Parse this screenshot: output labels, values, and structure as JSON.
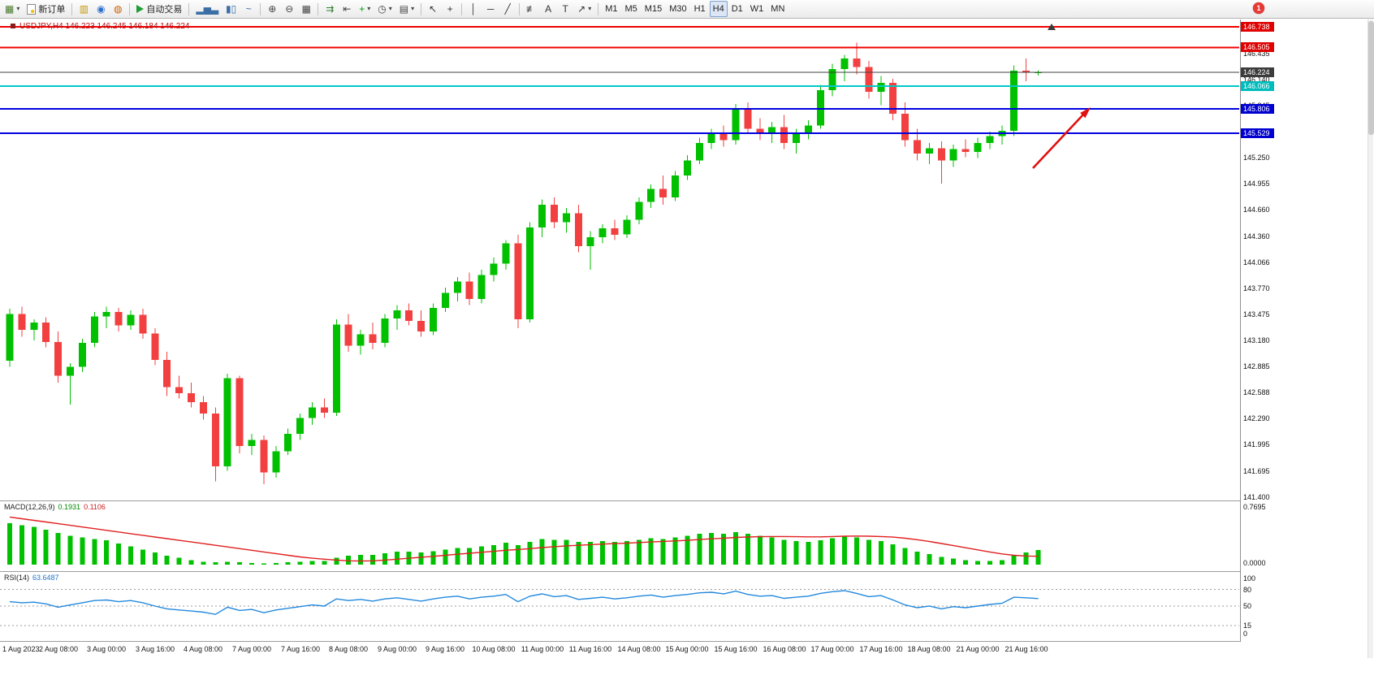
{
  "window": {
    "badge": "1"
  },
  "toolbar": {
    "items": [
      {
        "type": "button",
        "name": "new-chart",
        "glyph": "▦",
        "color": "#4a7c2f",
        "caret": true
      },
      {
        "type": "button",
        "name": "new-order",
        "icon": "paper",
        "label": "新订单"
      },
      {
        "type": "sep"
      },
      {
        "type": "button",
        "name": "market-watch",
        "glyph": "▥",
        "color": "#c89600"
      },
      {
        "type": "button",
        "name": "navigator",
        "glyph": "◉",
        "color": "#2a6fd0"
      },
      {
        "type": "button",
        "name": "community",
        "glyph": "◍",
        "color": "#d06000"
      },
      {
        "type": "sep"
      },
      {
        "type": "button",
        "name": "auto-trading",
        "icon": "play",
        "label": "自动交易"
      },
      {
        "type": "sep"
      },
      {
        "type": "button",
        "name": "chart-bars",
        "glyph": "▂▅▃",
        "color": "#3a6ea5"
      },
      {
        "type": "button",
        "name": "chart-candles",
        "glyph": "▮▯",
        "color": "#3a6ea5"
      },
      {
        "type": "button",
        "name": "chart-line",
        "glyph": "~",
        "color": "#3a6ea5"
      },
      {
        "type": "sep"
      },
      {
        "type": "button",
        "name": "zoom-in",
        "glyph": "⊕",
        "color": "#444444"
      },
      {
        "type": "button",
        "name": "zoom-out",
        "glyph": "⊖",
        "color": "#444444"
      },
      {
        "type": "button",
        "name": "tile-windows",
        "glyph": "▦",
        "color": "#444444"
      },
      {
        "type": "sep"
      },
      {
        "type": "button",
        "name": "auto-scroll",
        "glyph": "⇉",
        "color": "#2f7c2f"
      },
      {
        "type": "button",
        "name": "chart-shift",
        "glyph": "⇤",
        "color": "#444444"
      },
      {
        "type": "button",
        "name": "indicators-list",
        "glyph": "+",
        "color": "#00a000",
        "caret": true
      },
      {
        "type": "button",
        "name": "periods",
        "glyph": "◷",
        "color": "#444444",
        "caret": true
      },
      {
        "type": "button",
        "name": "templates",
        "glyph": "▤",
        "color": "#444444",
        "caret": true
      },
      {
        "type": "sep"
      },
      {
        "type": "button",
        "name": "cursor",
        "glyph": "↖",
        "color": "#333333"
      },
      {
        "type": "button",
        "name": "crosshair",
        "glyph": "+",
        "color": "#333333"
      },
      {
        "type": "sep"
      },
      {
        "type": "button",
        "name": "draw-vline",
        "glyph": "│",
        "color": "#333333"
      },
      {
        "type": "button",
        "name": "draw-hline",
        "glyph": "─",
        "color": "#333333"
      },
      {
        "type": "button",
        "name": "draw-trendline",
        "glyph": "╱",
        "color": "#333333"
      },
      {
        "type": "sep"
      },
      {
        "type": "button",
        "name": "draw-fibonacci",
        "glyph": "≢",
        "color": "#333333"
      },
      {
        "type": "button",
        "name": "draw-text",
        "glyph": "A",
        "color": "#333333"
      },
      {
        "type": "button",
        "name": "draw-label",
        "glyph": "T",
        "color": "#333333"
      },
      {
        "type": "button",
        "name": "draw-arrows",
        "glyph": "↗",
        "color": "#333333",
        "caret": true
      },
      {
        "type": "sep"
      }
    ],
    "timeframes": [
      "M1",
      "M5",
      "M15",
      "M30",
      "H1",
      "H4",
      "D1",
      "W1",
      "MN"
    ],
    "active_timeframe": "H4"
  },
  "chart": {
    "symbol_period": "USDJPY,H4",
    "ohlc_text": "146.223 146.245 146.184 146.224"
  },
  "colors": {
    "up": "#00c000",
    "down": "#f24040",
    "macd_bar": "#00c000",
    "macd_signal": "#e02020",
    "rsi_line": "#2288dd",
    "arrow": "#e01010"
  },
  "chart_data": {
    "type": "candlestick",
    "symbol": "USDJPY",
    "timeframe": "H4",
    "ylim": [
      141.4,
      146.85
    ],
    "price_ticks": [
      "146.435",
      "146.140",
      "145.845",
      "145.550",
      "145.250",
      "144.955",
      "144.660",
      "144.360",
      "144.066",
      "143.770",
      "143.475",
      "143.180",
      "142.885",
      "142.588",
      "142.290",
      "141.995",
      "141.695",
      "141.400"
    ],
    "levels": [
      {
        "label": "146.738",
        "price": 146.738,
        "line": "#f00000",
        "box": "#e00000",
        "width": 2
      },
      {
        "label": "146.505",
        "price": 146.505,
        "line": "#f00000",
        "box": "#e00000",
        "width": 2
      },
      {
        "label": "146.224",
        "price": 146.224,
        "line": "#404040",
        "box": "#3c3c3c",
        "width": 1
      },
      {
        "label": "146.066",
        "price": 146.066,
        "line": "#00c8c8",
        "box": "#00bcbc",
        "width": 2
      },
      {
        "label": "145.806",
        "price": 145.806,
        "line": "#0000e0",
        "box": "#0000d0",
        "width": 2
      },
      {
        "label": "145.529",
        "price": 145.529,
        "line": "#0000e0",
        "box": "#0000d0",
        "width": 2
      }
    ],
    "time_labels": [
      "1 Aug 2023",
      "2 Aug 08:00",
      "3 Aug 00:00",
      "3 Aug 16:00",
      "4 Aug 08:00",
      "7 Aug 00:00",
      "7 Aug 16:00",
      "8 Aug 08:00",
      "9 Aug 00:00",
      "9 Aug 16:00",
      "10 Aug 08:00",
      "11 Aug 00:00",
      "11 Aug 16:00",
      "14 Aug 08:00",
      "15 Aug 00:00",
      "15 Aug 16:00",
      "16 Aug 08:00",
      "17 Aug 00:00",
      "17 Aug 16:00",
      "18 Aug 08:00",
      "21 Aug 00:00",
      "21 Aug 16:00"
    ],
    "candles": [
      [
        142.95,
        143.54,
        142.88,
        143.48
      ],
      [
        143.48,
        143.56,
        143.22,
        143.3
      ],
      [
        143.3,
        143.42,
        143.18,
        143.38
      ],
      [
        143.38,
        143.44,
        143.1,
        143.16
      ],
      [
        143.16,
        143.28,
        142.7,
        142.78
      ],
      [
        142.78,
        142.92,
        142.45,
        142.88
      ],
      [
        142.88,
        143.2,
        142.82,
        143.15
      ],
      [
        143.15,
        143.5,
        143.1,
        143.45
      ],
      [
        143.45,
        143.56,
        143.32,
        143.5
      ],
      [
        143.5,
        143.55,
        143.28,
        143.35
      ],
      [
        143.35,
        143.52,
        143.3,
        143.47
      ],
      [
        143.47,
        143.54,
        143.2,
        143.26
      ],
      [
        143.26,
        143.32,
        142.9,
        142.96
      ],
      [
        142.96,
        143.05,
        142.55,
        142.65
      ],
      [
        142.65,
        142.78,
        142.52,
        142.58
      ],
      [
        142.58,
        142.7,
        142.42,
        142.48
      ],
      [
        142.48,
        142.55,
        142.28,
        142.35
      ],
      [
        142.35,
        142.42,
        141.58,
        141.75
      ],
      [
        141.75,
        142.8,
        141.7,
        142.75
      ],
      [
        142.75,
        142.78,
        141.9,
        141.98
      ],
      [
        141.98,
        142.12,
        141.88,
        142.05
      ],
      [
        142.05,
        142.1,
        141.55,
        141.68
      ],
      [
        141.68,
        141.98,
        141.62,
        141.92
      ],
      [
        141.92,
        142.18,
        141.88,
        142.12
      ],
      [
        142.12,
        142.35,
        142.05,
        142.3
      ],
      [
        142.3,
        142.48,
        142.22,
        142.42
      ],
      [
        142.42,
        142.52,
        142.3,
        142.36
      ],
      [
        142.36,
        143.42,
        142.32,
        143.36
      ],
      [
        143.36,
        143.48,
        143.05,
        143.12
      ],
      [
        143.12,
        143.3,
        143.02,
        143.25
      ],
      [
        143.25,
        143.38,
        143.08,
        143.15
      ],
      [
        143.15,
        143.48,
        143.1,
        143.43
      ],
      [
        143.43,
        143.58,
        143.3,
        143.52
      ],
      [
        143.52,
        143.6,
        143.35,
        143.4
      ],
      [
        143.4,
        143.52,
        143.22,
        143.28
      ],
      [
        143.28,
        143.6,
        143.24,
        143.55
      ],
      [
        143.55,
        143.78,
        143.5,
        143.72
      ],
      [
        143.72,
        143.9,
        143.62,
        143.85
      ],
      [
        143.85,
        143.95,
        143.58,
        143.65
      ],
      [
        143.65,
        143.98,
        143.6,
        143.92
      ],
      [
        143.92,
        144.12,
        143.85,
        144.05
      ],
      [
        144.05,
        144.32,
        143.98,
        144.28
      ],
      [
        144.28,
        144.38,
        143.32,
        143.42
      ],
      [
        143.42,
        144.52,
        143.38,
        144.46
      ],
      [
        144.46,
        144.78,
        144.35,
        144.72
      ],
      [
        144.72,
        144.8,
        144.45,
        144.52
      ],
      [
        144.52,
        144.68,
        144.4,
        144.62
      ],
      [
        144.62,
        144.72,
        144.18,
        144.25
      ],
      [
        144.25,
        144.42,
        143.98,
        144.35
      ],
      [
        144.35,
        144.5,
        144.28,
        144.45
      ],
      [
        144.45,
        144.55,
        144.32,
        144.38
      ],
      [
        144.38,
        144.6,
        144.34,
        144.55
      ],
      [
        144.55,
        144.8,
        144.5,
        144.75
      ],
      [
        144.75,
        144.95,
        144.68,
        144.9
      ],
      [
        144.9,
        145.05,
        144.72,
        144.8
      ],
      [
        144.8,
        145.1,
        144.76,
        145.05
      ],
      [
        145.05,
        145.28,
        145.0,
        145.22
      ],
      [
        145.22,
        145.48,
        145.18,
        145.42
      ],
      [
        145.42,
        145.58,
        145.35,
        145.52
      ],
      [
        145.52,
        145.62,
        145.38,
        145.45
      ],
      [
        145.45,
        145.86,
        145.4,
        145.8
      ],
      [
        145.8,
        145.88,
        145.52,
        145.58
      ],
      [
        145.58,
        145.7,
        145.45,
        145.52
      ],
      [
        145.52,
        145.66,
        145.42,
        145.6
      ],
      [
        145.6,
        145.74,
        145.35,
        145.42
      ],
      [
        145.42,
        145.58,
        145.3,
        145.52
      ],
      [
        145.52,
        145.68,
        145.46,
        145.62
      ],
      [
        145.62,
        146.08,
        145.58,
        146.02
      ],
      [
        146.02,
        146.32,
        145.95,
        146.26
      ],
      [
        146.26,
        146.42,
        146.12,
        146.38
      ],
      [
        146.38,
        146.56,
        146.2,
        146.28
      ],
      [
        146.28,
        146.35,
        145.92,
        146.0
      ],
      [
        146.0,
        146.18,
        145.85,
        146.1
      ],
      [
        146.1,
        146.15,
        145.68,
        145.75
      ],
      [
        145.75,
        145.88,
        145.38,
        145.45
      ],
      [
        145.45,
        145.58,
        145.22,
        145.3
      ],
      [
        145.3,
        145.42,
        145.18,
        145.36
      ],
      [
        145.36,
        145.44,
        144.96,
        145.22
      ],
      [
        145.22,
        145.4,
        145.15,
        145.35
      ],
      [
        145.35,
        145.46,
        145.26,
        145.32
      ],
      [
        145.32,
        145.48,
        145.25,
        145.42
      ],
      [
        145.42,
        145.55,
        145.35,
        145.5
      ],
      [
        145.5,
        145.62,
        145.4,
        145.56
      ],
      [
        145.56,
        146.3,
        145.5,
        146.24
      ],
      [
        146.24,
        146.38,
        146.12,
        146.223
      ],
      [
        146.223,
        146.245,
        146.184,
        146.224
      ]
    ],
    "macd": {
      "label": "MACD(12,26,9)",
      "value_main": "0.1931",
      "value_signal": "0.1106",
      "axis_max": "0.7695",
      "axis_zero": "0.0000",
      "hist": [
        0.55,
        0.52,
        0.5,
        0.46,
        0.42,
        0.38,
        0.36,
        0.34,
        0.32,
        0.28,
        0.24,
        0.2,
        0.16,
        0.12,
        0.09,
        0.06,
        0.04,
        0.03,
        0.04,
        0.03,
        0.02,
        0.015,
        0.02,
        0.03,
        0.04,
        0.05,
        0.05,
        0.09,
        0.12,
        0.13,
        0.13,
        0.15,
        0.17,
        0.17,
        0.16,
        0.18,
        0.2,
        0.22,
        0.22,
        0.24,
        0.26,
        0.29,
        0.26,
        0.3,
        0.34,
        0.33,
        0.33,
        0.3,
        0.3,
        0.31,
        0.3,
        0.31,
        0.33,
        0.35,
        0.34,
        0.36,
        0.38,
        0.41,
        0.42,
        0.41,
        0.43,
        0.41,
        0.38,
        0.36,
        0.33,
        0.31,
        0.3,
        0.32,
        0.35,
        0.37,
        0.36,
        0.33,
        0.31,
        0.27,
        0.22,
        0.17,
        0.14,
        0.1,
        0.08,
        0.06,
        0.05,
        0.05,
        0.06,
        0.12,
        0.16,
        0.1931
      ],
      "signal": [
        0.63,
        0.608,
        0.586,
        0.564,
        0.542,
        0.52,
        0.498,
        0.476,
        0.454,
        0.432,
        0.41,
        0.388,
        0.366,
        0.344,
        0.322,
        0.3,
        0.278,
        0.256,
        0.234,
        0.212,
        0.19,
        0.168,
        0.146,
        0.124,
        0.102,
        0.085,
        0.072,
        0.06,
        0.05,
        0.048,
        0.05,
        0.06,
        0.072,
        0.085,
        0.098,
        0.11,
        0.124,
        0.138,
        0.15,
        0.163,
        0.176,
        0.19,
        0.2,
        0.212,
        0.226,
        0.238,
        0.248,
        0.256,
        0.264,
        0.272,
        0.278,
        0.284,
        0.292,
        0.3,
        0.307,
        0.314,
        0.322,
        0.332,
        0.342,
        0.35,
        0.36,
        0.366,
        0.37,
        0.372,
        0.372,
        0.37,
        0.368,
        0.368,
        0.372,
        0.376,
        0.378,
        0.376,
        0.372,
        0.364,
        0.35,
        0.33,
        0.306,
        0.28,
        0.252,
        0.224,
        0.196,
        0.168,
        0.142,
        0.124,
        0.114,
        0.1106
      ]
    },
    "rsi": {
      "label": "RSI(14)",
      "value": "63.6487",
      "axis_labels": [
        "100",
        "80",
        "50",
        "15",
        "0"
      ],
      "levels": [
        80,
        50,
        15
      ],
      "values": [
        58,
        56,
        57,
        54,
        48,
        52,
        56,
        60,
        61,
        58,
        60,
        56,
        50,
        45,
        43,
        41,
        39,
        35,
        48,
        42,
        44,
        38,
        43,
        46,
        49,
        52,
        50,
        63,
        60,
        62,
        59,
        63,
        65,
        62,
        59,
        63,
        66,
        68,
        63,
        66,
        68,
        71,
        58,
        68,
        72,
        67,
        69,
        62,
        64,
        66,
        63,
        65,
        68,
        70,
        66,
        69,
        71,
        74,
        75,
        72,
        77,
        71,
        68,
        69,
        64,
        66,
        68,
        73,
        76,
        78,
        73,
        67,
        69,
        61,
        52,
        47,
        50,
        45,
        49,
        47,
        50,
        53,
        55,
        66,
        65,
        63.6
      ]
    },
    "annotations": [
      {
        "name": "trend-arrow",
        "shape": "arrow-up-right",
        "color": "#e01010"
      }
    ]
  }
}
